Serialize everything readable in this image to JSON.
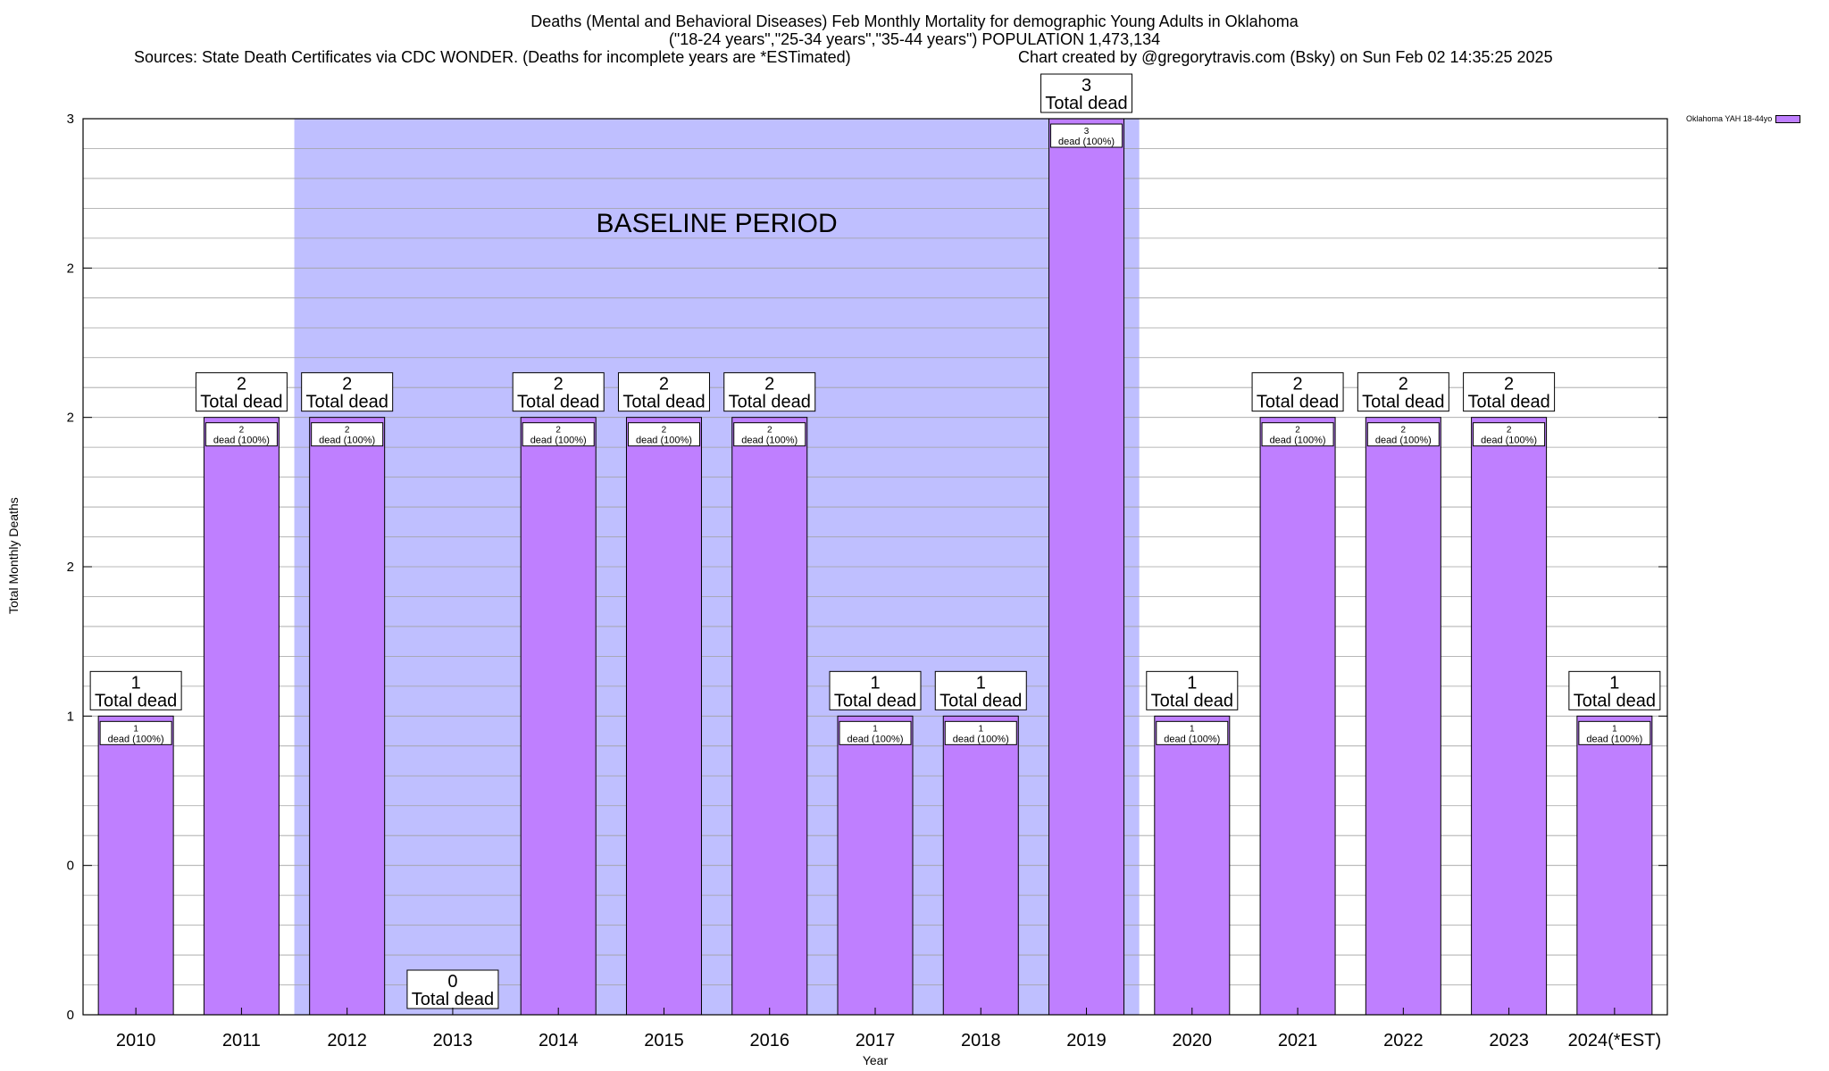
{
  "chart_data": {
    "type": "bar",
    "title_line1": "Deaths (Mental and Behavioral Diseases) Feb Monthly Mortality for demographic Young Adults in Oklahoma",
    "title_line2": "(\"18-24 years\",\"25-34 years\",\"35-44 years\") POPULATION 1,473,134",
    "source_left": "Sources: State Death Certificates via CDC WONDER. (Deaths for incomplete years are *ESTimated)",
    "source_right": "Chart created by @gregorytravis.com (Bsky) on Sun Feb 02 14:35:25 2025",
    "xlabel": "Year",
    "ylabel": "Total Monthly Deaths",
    "ylim": [
      0,
      3
    ],
    "ytick_values": [
      0,
      0.5,
      1,
      1.5,
      2,
      2.5,
      3
    ],
    "ytick_labels": [
      "0",
      "0",
      "1",
      "2",
      "2",
      "2",
      "3"
    ],
    "categories": [
      "2010",
      "2011",
      "2012",
      "2013",
      "2014",
      "2015",
      "2016",
      "2017",
      "2018",
      "2019",
      "2020",
      "2021",
      "2022",
      "2023",
      "2024(*EST)"
    ],
    "values": [
      1,
      2,
      2,
      0,
      2,
      2,
      2,
      1,
      1,
      3,
      1,
      2,
      2,
      2,
      1
    ],
    "total_label_top": [
      "1",
      "2",
      "2",
      "0",
      "2",
      "2",
      "2",
      "1",
      "1",
      "3",
      "1",
      "2",
      "2",
      "2",
      "1"
    ],
    "total_label_text": "Total dead",
    "inner_label_top": [
      "1",
      "2",
      "2",
      "",
      "2",
      "2",
      "2",
      "1",
      "1",
      "3",
      "1",
      "2",
      "2",
      "2",
      "1"
    ],
    "inner_label_text": "dead (100%)",
    "series": [
      {
        "name": "Oklahoma YAH 18-44yo",
        "values": [
          1,
          2,
          2,
          0,
          2,
          2,
          2,
          1,
          1,
          3,
          1,
          2,
          2,
          2,
          1
        ]
      }
    ],
    "legend_position": "top-right",
    "baseline_label": "BASELINE PERIOD",
    "baseline_range": [
      "2012",
      "2019"
    ],
    "grid": true,
    "colors": {
      "bar": "#bf7fff",
      "bar_edge": "#000000",
      "baseline_shade": "#bfbfff",
      "grid": "#a0a0a0"
    }
  }
}
